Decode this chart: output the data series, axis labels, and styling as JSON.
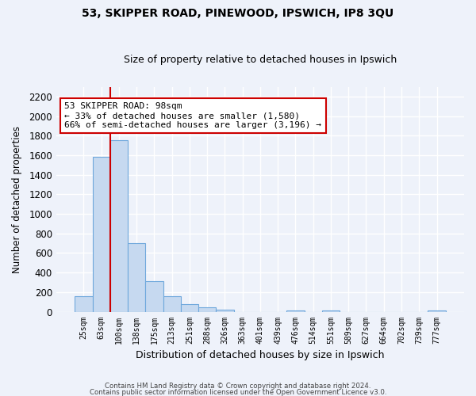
{
  "title": "53, SKIPPER ROAD, PINEWOOD, IPSWICH, IP8 3QU",
  "subtitle": "Size of property relative to detached houses in Ipswich",
  "xlabel": "Distribution of detached houses by size in Ipswich",
  "ylabel": "Number of detached properties",
  "categories": [
    "25sqm",
    "63sqm",
    "100sqm",
    "138sqm",
    "175sqm",
    "213sqm",
    "251sqm",
    "288sqm",
    "326sqm",
    "363sqm",
    "401sqm",
    "439sqm",
    "476sqm",
    "514sqm",
    "551sqm",
    "589sqm",
    "627sqm",
    "664sqm",
    "702sqm",
    "739sqm",
    "777sqm"
  ],
  "values": [
    160,
    1580,
    1750,
    700,
    310,
    155,
    80,
    45,
    20,
    0,
    0,
    0,
    10,
    0,
    15,
    0,
    0,
    0,
    0,
    0,
    10
  ],
  "bar_color": "#c6d9f0",
  "bar_edge_color": "#6fa8dc",
  "vline_color": "#cc0000",
  "vline_x_index": 2,
  "ylim": [
    0,
    2300
  ],
  "yticks": [
    0,
    200,
    400,
    600,
    800,
    1000,
    1200,
    1400,
    1600,
    1800,
    2000,
    2200
  ],
  "annotation_title": "53 SKIPPER ROAD: 98sqm",
  "annotation_line1": "← 33% of detached houses are smaller (1,580)",
  "annotation_line2": "66% of semi-detached houses are larger (3,196) →",
  "footer_line1": "Contains HM Land Registry data © Crown copyright and database right 2024.",
  "footer_line2": "Contains public sector information licensed under the Open Government Licence v3.0.",
  "background_color": "#eef2fa",
  "grid_color": "#ffffff",
  "annotation_box_color": "#ffffff",
  "annotation_box_edge": "#cc0000",
  "title_fontsize": 10,
  "subtitle_fontsize": 9
}
